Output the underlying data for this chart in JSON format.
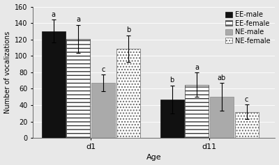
{
  "groups": [
    "d1",
    "d11"
  ],
  "categories": [
    "EE-male",
    "EE-female",
    "NE-male",
    "NE-female"
  ],
  "bar_values": {
    "d1": [
      130,
      121,
      67,
      109
    ],
    "d11": [
      47,
      65,
      50,
      32
    ]
  },
  "error_values": {
    "d1": [
      14,
      17,
      10,
      16
    ],
    "d11": [
      17,
      15,
      17,
      9
    ]
  },
  "significance_labels": {
    "d1": [
      "a",
      "a",
      "c",
      "b"
    ],
    "d11": [
      "b",
      "a",
      "ab",
      "c"
    ]
  },
  "colors": [
    "#111111",
    "#ffffff",
    "#aaaaaa",
    "#ffffff"
  ],
  "hatches": [
    "",
    "---",
    "",
    "...."
  ],
  "edgecolors": [
    "#111111",
    "#333333",
    "#888888",
    "#666666"
  ],
  "ylabel": "Number of vocalizations",
  "xlabel": "Age",
  "ylim": [
    0,
    160
  ],
  "yticks": [
    0,
    20,
    40,
    60,
    80,
    100,
    120,
    140,
    160
  ],
  "bar_width": 0.09,
  "group_centers": [
    0.27,
    0.72
  ],
  "legend_labels": [
    "EE-male",
    "EE-female",
    "NE-male",
    "NE-female"
  ],
  "bg_color": "#e8e8e8",
  "grid_color": "#ffffff",
  "sig_fontsize": 7,
  "axis_fontsize": 8,
  "ylabel_fontsize": 7,
  "tick_fontsize": 7,
  "legend_fontsize": 7
}
